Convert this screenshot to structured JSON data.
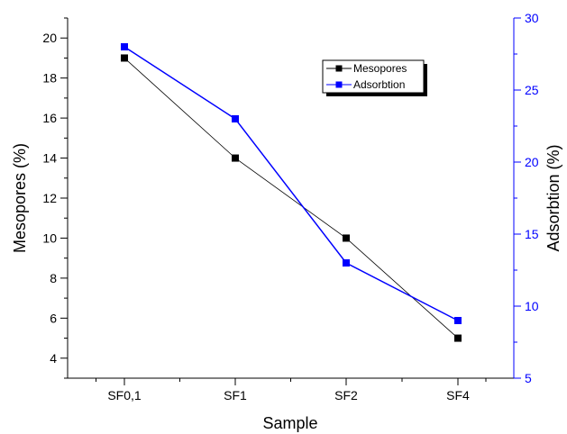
{
  "chart_data": {
    "type": "line",
    "categories": [
      "SF0,1",
      "SF1",
      "SF2",
      "SF4"
    ],
    "xlabel": "Sample",
    "ylabel": "Mesopores (%)",
    "y2label": "Adsorbtion (%)",
    "ylim": [
      3,
      21
    ],
    "y2lim": [
      5,
      30
    ],
    "yticks": [
      "4",
      "6",
      "8",
      "10",
      "12",
      "14",
      "16",
      "18",
      "20"
    ],
    "y2ticks": [
      "5",
      "10",
      "15",
      "20",
      "25",
      "30"
    ],
    "grid": false,
    "legend_position": "top-right",
    "series": [
      {
        "name": "Mesopores",
        "axis": "left",
        "color": "#000000",
        "values": [
          19,
          14,
          10,
          5
        ]
      },
      {
        "name": "Adsorbtion",
        "axis": "right",
        "color": "#0000ff",
        "values": [
          28,
          23,
          13,
          9
        ]
      }
    ]
  },
  "colors": {
    "left_axis": "#000000",
    "right_axis": "#0000ff"
  }
}
